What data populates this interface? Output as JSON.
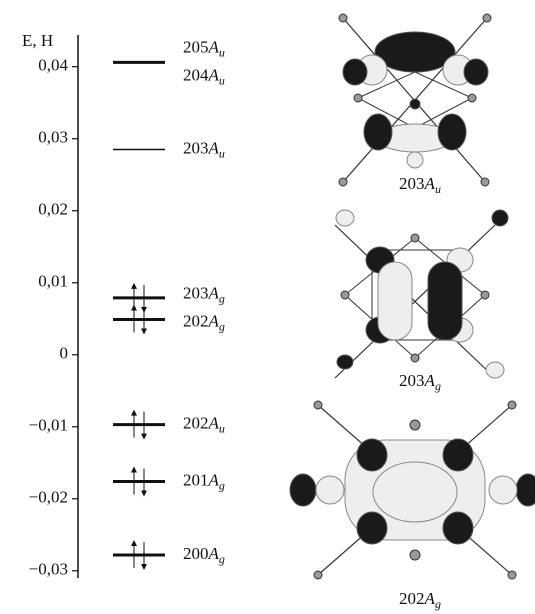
{
  "chart_data": {
    "type": "energy-levels",
    "ylabel": "E, H",
    "ylim": [
      -0.031,
      0.0444
    ],
    "yticks": [
      {
        "value": 0.04,
        "label": "0,04"
      },
      {
        "value": 0.03,
        "label": "0,03"
      },
      {
        "value": 0.02,
        "label": "0,02"
      },
      {
        "value": 0.01,
        "label": "0,01"
      },
      0,
      {
        "value": -0.01,
        "label": "−0,01"
      },
      {
        "value": -0.02,
        "label": "−0,02"
      },
      {
        "value": -0.03,
        "label": "−0,03"
      }
    ],
    "levels": [
      {
        "label": {
          "number": "205",
          "symmetry": "A",
          "sub": "u"
        },
        "energy": 0.0407,
        "occupied": false
      },
      {
        "label": {
          "number": "204",
          "symmetry": "A",
          "sub": "u"
        },
        "energy": 0.0405,
        "occupied": false
      },
      {
        "label": {
          "number": "203",
          "symmetry": "A",
          "sub": "u"
        },
        "energy": 0.0285,
        "occupied": false
      },
      {
        "label": {
          "number": "203",
          "symmetry": "A",
          "sub": "g"
        },
        "energy": 0.0079,
        "occupied": true
      },
      {
        "label": {
          "number": "202",
          "symmetry": "A",
          "sub": "g"
        },
        "energy": 0.0049,
        "occupied": true
      },
      {
        "label": {
          "number": "202",
          "symmetry": "A",
          "sub": "u"
        },
        "energy": -0.0097,
        "occupied": true
      },
      {
        "label": {
          "number": "201",
          "symmetry": "A",
          "sub": "g"
        },
        "energy": -0.0176,
        "occupied": true
      },
      {
        "label": {
          "number": "200",
          "symmetry": "A",
          "sub": "g"
        },
        "energy": -0.0278,
        "occupied": true
      }
    ],
    "orbitals": [
      {
        "number": "203",
        "symmetry": "A",
        "sub": "u"
      },
      {
        "number": "203",
        "symmetry": "A",
        "sub": "g"
      },
      {
        "number": "202",
        "symmetry": "A",
        "sub": "g"
      }
    ]
  }
}
